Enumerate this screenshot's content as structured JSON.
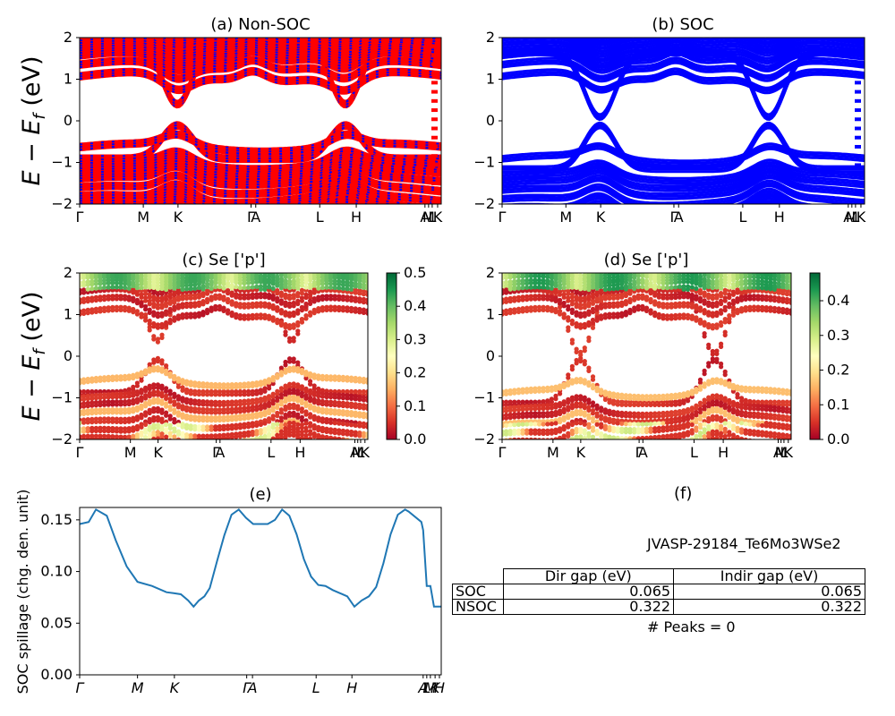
{
  "kpoint_labels": [
    "Γ",
    "M",
    "K",
    "Γ",
    "A",
    "L",
    "H",
    "A",
    "M",
    "L",
    "K"
  ],
  "kpoint_labels_spillage": [
    "Γ",
    "M",
    "K",
    "Γ",
    "A",
    "L",
    "H",
    "A",
    "L",
    "M",
    "K",
    "H"
  ],
  "colors": {
    "nonsoc_red": "#ff0000",
    "nonsoc_blue": "#0000ff",
    "soc_blue": "#0000ff",
    "spillage_line": "#1f77b4"
  },
  "panels": {
    "a": {
      "title": "(a) Non-SOC"
    },
    "b": {
      "title": "(b) SOC"
    },
    "c": {
      "title": "(c)  Se ['p']"
    },
    "d": {
      "title": "(d) Se ['p']"
    },
    "e": {
      "title": "(e)"
    },
    "f": {
      "title": "(f)"
    }
  },
  "ylabel_energy": "E − E_f (eV)",
  "ylabel_spillage": "SOC spillage (chg. den. unit)",
  "colormap": "RdYlGn",
  "table": {
    "id": "JVASP-29184_Te6Mo3WSe2",
    "headers": [
      "Dir gap (eV)",
      "Indir gap (eV)"
    ],
    "rows": [
      {
        "label": "SOC",
        "dir": "0.065",
        "indir": "0.065"
      },
      {
        "label": "NSOC",
        "dir": "0.322",
        "indir": "0.322"
      }
    ],
    "peaks": "# Peaks = 0"
  },
  "chart_data": [
    {
      "type": "line",
      "title": "(a) Non-SOC",
      "ylabel": "E − E_f (eV)",
      "ylim": [
        -2,
        2
      ],
      "yticks": [
        -2,
        -1,
        0,
        1,
        2
      ],
      "xticklabels": [
        "Γ",
        "M",
        "K",
        "Γ",
        "A",
        "L",
        "H",
        "A",
        "M",
        "L",
        "K"
      ],
      "series": [
        {
          "name": "spin-up (red)",
          "color": "#ff0000"
        },
        {
          "name": "spin-down (blue dashed)",
          "color": "#0000ff"
        }
      ],
      "band_features": {
        "cbm_eV": 0.33,
        "vbm_eV": -0.05,
        "direct_gap_eV": 0.322
      }
    },
    {
      "type": "line",
      "title": "(b) SOC",
      "ylabel": "",
      "ylim": [
        -2,
        2
      ],
      "yticks": [
        -2,
        -1,
        0,
        1,
        2
      ],
      "xticklabels": [
        "Γ",
        "M",
        "K",
        "Γ",
        "A",
        "L",
        "H",
        "A",
        "M",
        "L",
        "K"
      ],
      "series": [
        {
          "name": "bands",
          "color": "#0000ff"
        }
      ],
      "band_features": {
        "cbm_eV": 0.03,
        "vbm_eV": -0.03,
        "direct_gap_eV": 0.065
      }
    },
    {
      "type": "scatter",
      "title": "(c)  Se ['p']",
      "ylabel": "E − E_f (eV)",
      "ylim": [
        -2,
        2
      ],
      "yticks": [
        -2,
        -1,
        0,
        1,
        2
      ],
      "colorbar": {
        "min": 0.0,
        "max": 0.5,
        "ticks": [
          "0.0",
          "0.1",
          "0.2",
          "0.3",
          "0.4",
          "0.5"
        ]
      }
    },
    {
      "type": "scatter",
      "title": "(d) Se ['p']",
      "ylabel": "",
      "ylim": [
        -2,
        2
      ],
      "yticks": [
        -2,
        -1,
        0,
        1,
        2
      ],
      "colorbar": {
        "min": 0.0,
        "max": 0.48,
        "ticks": [
          "0.0",
          "0.1",
          "0.2",
          "0.3",
          "0.4"
        ]
      }
    },
    {
      "type": "line",
      "title": "(e)",
      "ylabel": "SOC spillage (chg. den. unit)",
      "ylim": [
        0.0,
        0.162
      ],
      "yticks": [
        "0.00",
        "0.05",
        "0.10",
        "0.15"
      ],
      "xticklabels": [
        "Γ",
        "M",
        "K",
        "Γ",
        "A",
        "L",
        "H",
        "A",
        "L",
        "M",
        "K",
        "H"
      ],
      "x": [
        0,
        0.025,
        0.045,
        0.075,
        0.1,
        0.13,
        0.16,
        0.2,
        0.24,
        0.26,
        0.28,
        0.3,
        0.315,
        0.33,
        0.345,
        0.36,
        0.38,
        0.4,
        0.42,
        0.44,
        0.46,
        0.48,
        0.5,
        0.52,
        0.54,
        0.56,
        0.58,
        0.6,
        0.62,
        0.64,
        0.66,
        0.68,
        0.7,
        0.72,
        0.74,
        0.76,
        0.78,
        0.8,
        0.82,
        0.84,
        0.86,
        0.88,
        0.9,
        0.91,
        0.945,
        0.95,
        0.96,
        0.97,
        0.98,
        1.0
      ],
      "y": [
        0.146,
        0.148,
        0.16,
        0.154,
        0.13,
        0.105,
        0.09,
        0.086,
        0.08,
        0.079,
        0.078,
        0.072,
        0.066,
        0.072,
        0.076,
        0.084,
        0.11,
        0.135,
        0.155,
        0.16,
        0.152,
        0.146,
        0.146,
        0.146,
        0.15,
        0.16,
        0.154,
        0.136,
        0.112,
        0.095,
        0.087,
        0.086,
        0.082,
        0.079,
        0.076,
        0.066,
        0.072,
        0.076,
        0.085,
        0.108,
        0.136,
        0.155,
        0.16,
        0.158,
        0.148,
        0.14,
        0.086,
        0.086,
        0.066,
        0.066
      ]
    }
  ]
}
